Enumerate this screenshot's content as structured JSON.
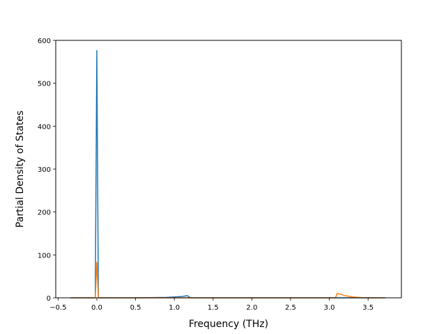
{
  "chart_data": {
    "type": "line",
    "title": "",
    "xlabel": "Frequency (THz)",
    "ylabel": "Partial Density of States",
    "xlim": [
      -0.53,
      3.93
    ],
    "ylim": [
      0,
      600
    ],
    "grid": false,
    "legend": "none",
    "x_ticks": [
      -0.5,
      0.0,
      0.5,
      1.0,
      1.5,
      2.0,
      2.5,
      3.0,
      3.5
    ],
    "x_tick_labels": [
      "−0.5",
      "0.0",
      "0.5",
      "1.0",
      "1.5",
      "2.0",
      "2.5",
      "3.0",
      "3.5"
    ],
    "y_ticks": [
      0,
      100,
      200,
      300,
      400,
      500,
      600
    ],
    "y_tick_labels": [
      "0",
      "100",
      "200",
      "300",
      "400",
      "500",
      "600"
    ],
    "series": [
      {
        "color": "#1f77b4",
        "x": [
          -0.34,
          -0.05,
          -0.02,
          0.0,
          0.02,
          0.05,
          0.5,
          0.9,
          1.1,
          1.17,
          1.19,
          1.22,
          3.0,
          3.1,
          3.5,
          3.72
        ],
        "y": [
          0,
          0,
          0,
          576,
          0,
          0,
          0,
          1,
          3,
          5,
          2,
          0,
          0,
          0,
          0,
          0
        ]
      },
      {
        "color": "#ff7f0e",
        "x": [
          -0.34,
          -0.05,
          -0.02,
          0.0,
          0.02,
          0.05,
          1.0,
          2.0,
          3.0,
          3.08,
          3.1,
          3.15,
          3.2,
          3.3,
          3.45,
          3.72
        ],
        "y": [
          0,
          0,
          0,
          83,
          0,
          0,
          0,
          0,
          0,
          0,
          10,
          8,
          5,
          2,
          0,
          0
        ]
      }
    ]
  }
}
